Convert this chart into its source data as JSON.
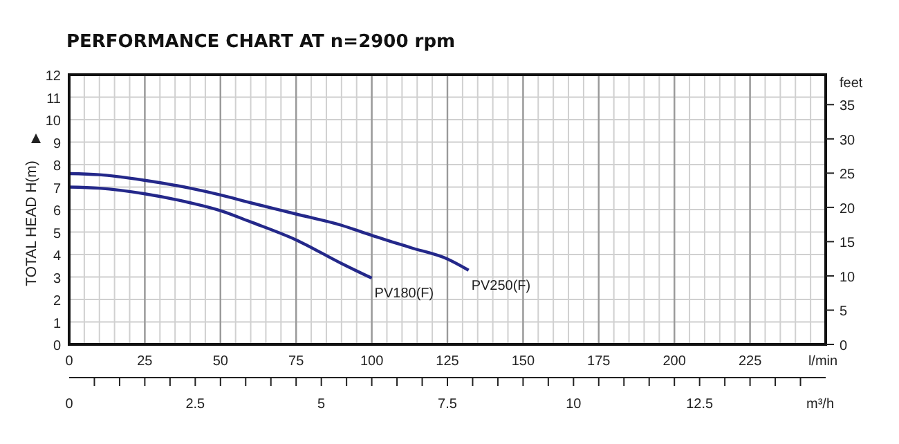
{
  "chart_data": {
    "type": "line",
    "title": "PERFORMANCE CHART AT  n=2900 rpm",
    "xlabel": "l/min",
    "ylabel": "TOTAL HEAD H(m)",
    "y2label": "feet",
    "x2label": "m³/h",
    "xlim": [
      0,
      250
    ],
    "xticks": [
      0,
      25,
      50,
      75,
      100,
      125,
      150,
      175,
      200,
      225
    ],
    "ylim": [
      0,
      12
    ],
    "yticks": [
      0,
      1,
      2,
      3,
      4,
      5,
      6,
      7,
      8,
      9,
      10,
      11,
      12
    ],
    "y2lim": [
      0,
      39.37
    ],
    "y2ticks": [
      0,
      5,
      10,
      15,
      20,
      25,
      30,
      35
    ],
    "x2lim": [
      0,
      15
    ],
    "x2ticks": [
      0,
      2.5,
      5,
      7.5,
      10,
      12.5
    ],
    "grid": true,
    "line_style": "solid",
    "series": [
      {
        "name": "PV250(F)",
        "color": "#24288a",
        "x": [
          0,
          10,
          25,
          40,
          50,
          60,
          75,
          90,
          100,
          113,
          125,
          132
        ],
        "values": [
          7.6,
          7.55,
          7.3,
          6.95,
          6.65,
          6.3,
          5.8,
          5.3,
          4.85,
          4.3,
          3.8,
          3.3
        ]
      },
      {
        "name": "PV180(F)",
        "color": "#24288a",
        "x": [
          0,
          10,
          25,
          40,
          50,
          60,
          75,
          90,
          100
        ],
        "values": [
          7,
          6.95,
          6.7,
          6.3,
          5.95,
          5.45,
          4.65,
          3.6,
          2.95
        ]
      }
    ]
  }
}
